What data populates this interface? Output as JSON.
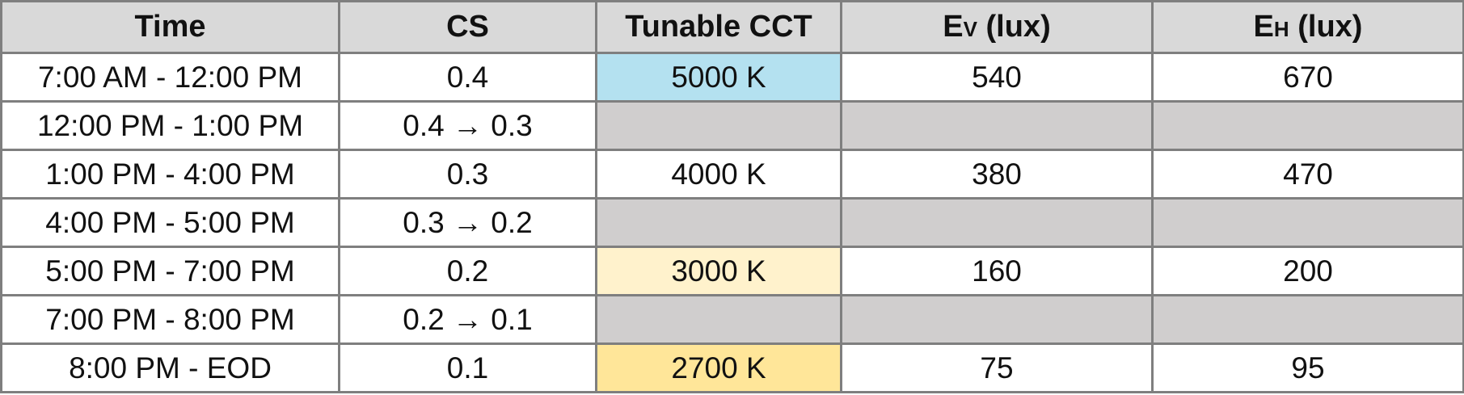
{
  "table": {
    "headers": {
      "time": "Time",
      "cs": "CS",
      "cct": "Tunable CCT",
      "ev_main": "E",
      "ev_sub": "V",
      "ev_unit": " (lux)",
      "eh_main": "E",
      "eh_sub": "H",
      "eh_unit": " (lux)"
    },
    "rows": [
      {
        "time": "7:00 AM - 12:00 PM",
        "cs": "0.4",
        "cct": "5000 K",
        "ev": "540",
        "eh": "670"
      },
      {
        "time": "12:00 PM - 1:00 PM",
        "cs": "0.4 → 0.3",
        "cct": "",
        "ev": "",
        "eh": ""
      },
      {
        "time": "1:00 PM - 4:00 PM",
        "cs": "0.3",
        "cct": "4000 K",
        "ev": "380",
        "eh": "470"
      },
      {
        "time": "4:00 PM - 5:00 PM",
        "cs": "0.3 → 0.2",
        "cct": "",
        "ev": "",
        "eh": ""
      },
      {
        "time": "5:00 PM - 7:00 PM",
        "cs": "0.2",
        "cct": "3000 K",
        "ev": "160",
        "eh": "200"
      },
      {
        "time": "7:00 PM - 8:00 PM",
        "cs": "0.2 → 0.1",
        "cct": "",
        "ev": "",
        "eh": ""
      },
      {
        "time": "8:00 PM - EOD",
        "cs": "0.1",
        "cct": "2700 K",
        "ev": "75",
        "eh": "95"
      }
    ]
  },
  "colors": {
    "header_bg": "#d9d9d9",
    "border": "#7f7f7f",
    "transition_bg": "#d0cece",
    "cct_5000k": "#b4e1f0",
    "cct_4000k": "#ffffff",
    "cct_3000k": "#fff2cc",
    "cct_2700k": "#ffe699"
  }
}
